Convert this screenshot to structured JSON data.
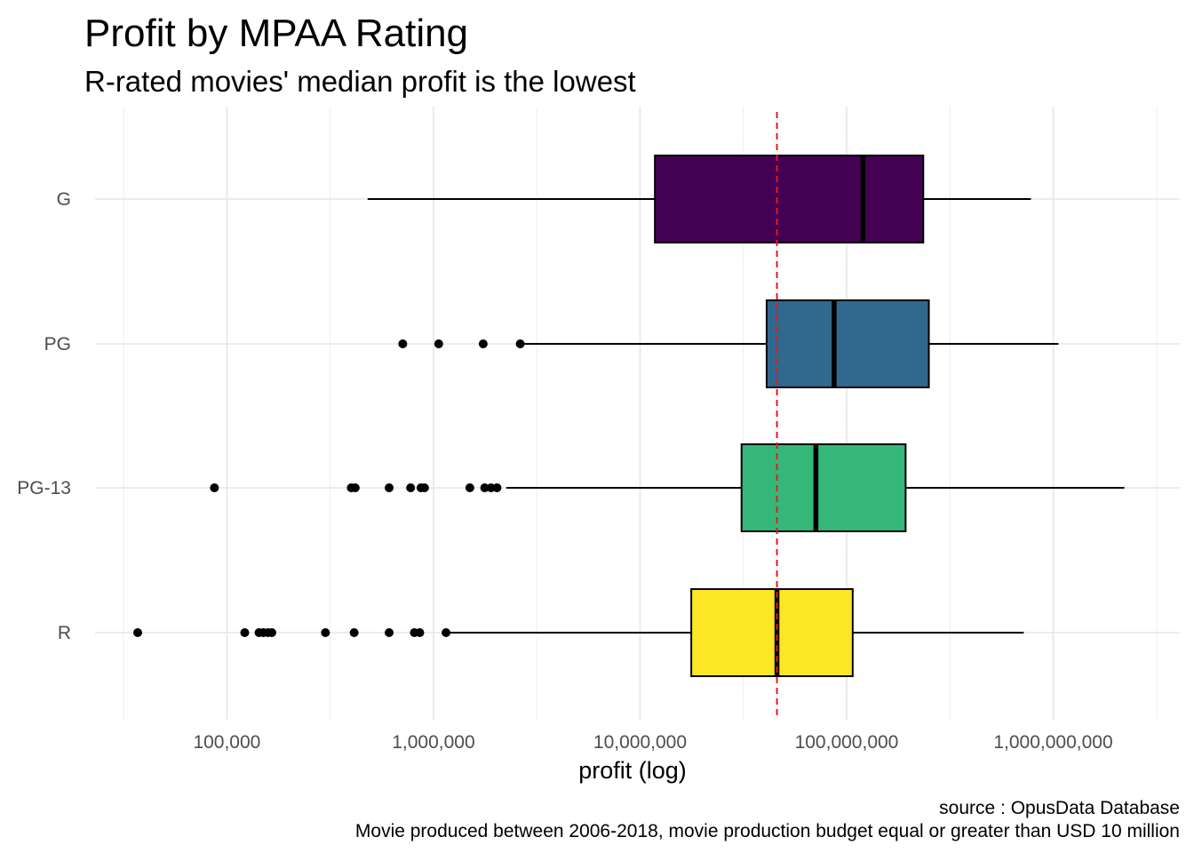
{
  "chart_data": {
    "type": "boxplot",
    "orientation": "horizontal",
    "title": "Profit by MPAA Rating",
    "subtitle": "R-rated movies' median profit is the lowest",
    "xlabel": "profit (log)",
    "ylabel": "",
    "x_scale": "log10",
    "xlim": [
      23000,
      4100000000
    ],
    "x_ticks": [
      100000,
      1000000,
      10000000,
      100000000,
      1000000000
    ],
    "x_tick_labels": [
      "100,000",
      "1,000,000",
      "10,000,000",
      "100,000,000",
      "1,000,000,000"
    ],
    "categories": [
      "G",
      "PG",
      "PG-13",
      "R"
    ],
    "grid": true,
    "legend": "none",
    "reference_line": {
      "value": 46000000,
      "color": "#e41a1c",
      "style": "dashed"
    },
    "series": [
      {
        "category": "G",
        "color": "#440154",
        "whisker_low": 480000,
        "q1": 11800000,
        "median": 120000000,
        "q3": 235000000,
        "whisker_high": 780000000,
        "outliers": []
      },
      {
        "category": "PG",
        "color": "#31688E",
        "whisker_low": 2700000,
        "q1": 41000000,
        "median": 87000000,
        "q3": 250000000,
        "whisker_high": 1060000000,
        "outliers": [
          710000,
          1060000,
          1740000,
          2630000
        ]
      },
      {
        "category": "PG-13",
        "color": "#35B779",
        "whisker_low": 2250000,
        "q1": 31000000,
        "median": 71000000,
        "q3": 193000000,
        "whisker_high": 2210000000,
        "outliers": [
          87000,
          400000,
          418000,
          610000,
          775000,
          870000,
          905000,
          1500000,
          1770000,
          1900000,
          2030000
        ]
      },
      {
        "category": "R",
        "color": "#FDE725",
        "whisker_low": 1200000,
        "q1": 17700000,
        "median": 46000000,
        "q3": 107000000,
        "whisker_high": 720000000,
        "outliers": [
          37000,
          122000,
          143000,
          150000,
          158000,
          165000,
          300000,
          413000,
          610000,
          808000,
          858000,
          1150000
        ]
      }
    ],
    "caption_lines": [
      "source : OpusData Database",
      "Movie produced between 2006-2018, movie production budget equal or greater than USD 10 million"
    ]
  }
}
